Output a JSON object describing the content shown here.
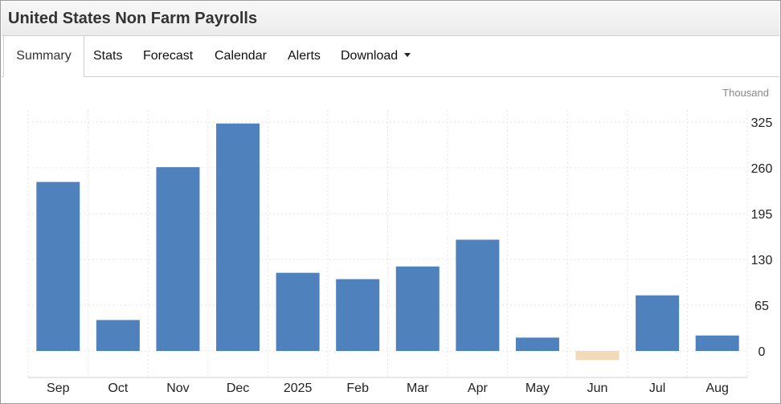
{
  "header": {
    "title": "United States Non Farm Payrolls"
  },
  "tabs": [
    {
      "label": "Summary",
      "active": true
    },
    {
      "label": "Stats"
    },
    {
      "label": "Forecast"
    },
    {
      "label": "Calendar"
    },
    {
      "label": "Alerts"
    },
    {
      "label": "Download",
      "dropdown": true
    }
  ],
  "colors": {
    "bar": "#4f81bd",
    "bar_negative": "#f2dbb6",
    "grid": "#e6e6e6"
  },
  "chart_data": {
    "type": "bar",
    "unit": "Thousand",
    "categories": [
      "Sep",
      "Oct",
      "Nov",
      "Dec",
      "2025",
      "Feb",
      "Mar",
      "Apr",
      "May",
      "Jun",
      "Jul",
      "Aug"
    ],
    "values": [
      240,
      44,
      261,
      323,
      111,
      102,
      120,
      158,
      19,
      -13,
      79,
      22
    ],
    "yticks": [
      0,
      65,
      130,
      195,
      260,
      325
    ],
    "ylim": [
      -30,
      340
    ],
    "grid": true,
    "y_axis_position": "right"
  }
}
